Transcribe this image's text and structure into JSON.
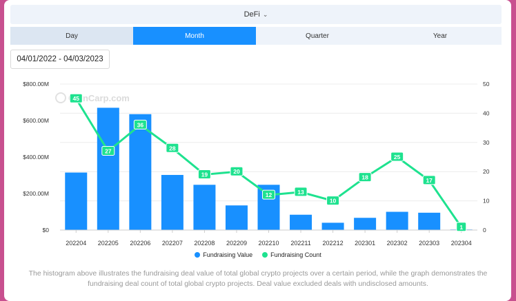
{
  "header": {
    "category": "DeFi",
    "tabs": [
      {
        "label": "Day",
        "active": false
      },
      {
        "label": "Month",
        "active": true
      },
      {
        "label": "Quarter",
        "active": false
      },
      {
        "label": "Year",
        "active": false
      }
    ],
    "date_range": "04/01/2022 - 04/03/2023"
  },
  "watermark": "CoinCarp.com",
  "chart_data": {
    "type": "bar",
    "categories": [
      "202204",
      "202205",
      "202206",
      "202207",
      "202208",
      "202209",
      "202210",
      "202211",
      "202212",
      "202301",
      "202302",
      "202303",
      "202304"
    ],
    "series": [
      {
        "name": "Fundraising Value",
        "type": "bar",
        "axis": "left",
        "color": "#1890ff",
        "values": [
          315,
          670,
          635,
          302,
          248,
          135,
          248,
          84,
          40,
          67,
          100,
          95,
          3
        ]
      },
      {
        "name": "Fundraising Count",
        "type": "line",
        "axis": "right",
        "color": "#1ee28f",
        "values": [
          45,
          27,
          36,
          28,
          19,
          20,
          12,
          13,
          10,
          18,
          25,
          17,
          1
        ],
        "labels": [
          "45",
          "27",
          "36",
          "28",
          "19",
          "20",
          "12",
          "13",
          "10",
          "18",
          "25",
          "17",
          "1"
        ]
      }
    ],
    "y_left": {
      "min": 0,
      "max": 800,
      "ticks": [
        0,
        200,
        400,
        600,
        800
      ],
      "tick_labels": [
        "$0",
        "$200.00M",
        "$400.00M",
        "$600.00M",
        "$800.00M"
      ]
    },
    "y_right": {
      "min": 0,
      "max": 50,
      "ticks": [
        0,
        10,
        20,
        30,
        40,
        50
      ],
      "tick_labels": [
        "0",
        "10",
        "20",
        "30",
        "40",
        "50"
      ]
    },
    "grid": true,
    "legend_position": "bottom"
  },
  "note": "The histogram above illustrates the fundraising deal value of total global crypto projects over a certain period, while the graph demonstrates the fundraising deal count of total global crypto projects. Deal value excluded deals with undisclosed amounts."
}
